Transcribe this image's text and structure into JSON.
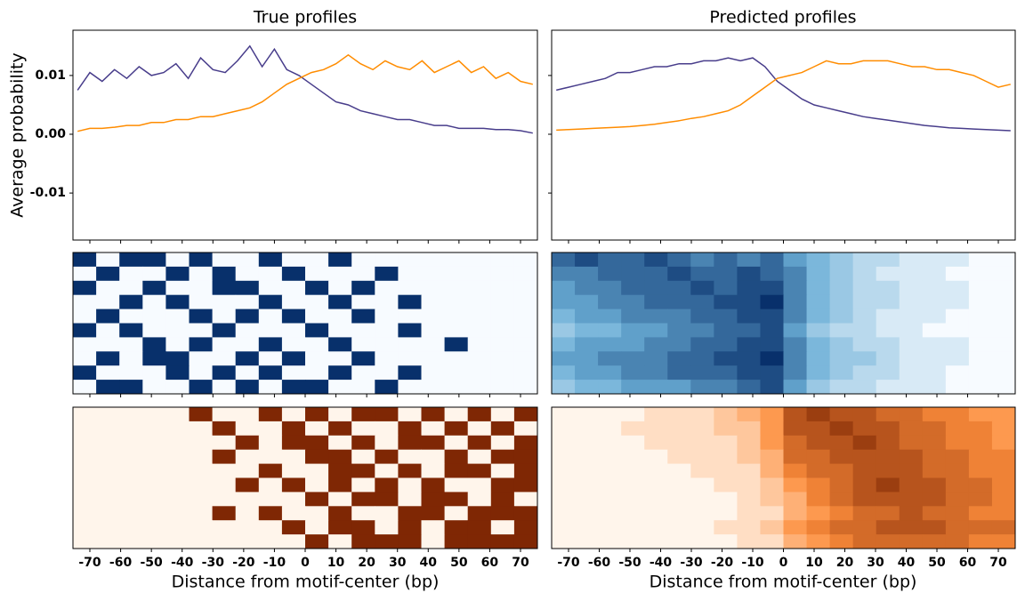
{
  "chart_data": [
    {
      "type": "line",
      "title": "True profiles",
      "ylabel": "Average probability",
      "x": [
        -74,
        -70,
        -66,
        -62,
        -58,
        -54,
        -50,
        -46,
        -42,
        -38,
        -34,
        -30,
        -26,
        -22,
        -18,
        -14,
        -10,
        -6,
        -2,
        2,
        6,
        10,
        14,
        18,
        22,
        26,
        30,
        34,
        38,
        42,
        46,
        50,
        54,
        58,
        62,
        66,
        70,
        74
      ],
      "xlim": [
        -75.5,
        75.5
      ],
      "xticks": [
        -70,
        -60,
        -50,
        -40,
        -30,
        -20,
        -10,
        0,
        10,
        20,
        30,
        40,
        50,
        60,
        70
      ],
      "ylim": [
        -0.018,
        0.0177
      ],
      "yticks": [
        0.01,
        {
          "value": 0,
          "label": "0.00"
        },
        -0.01
      ],
      "series": [
        {
          "color": "#483d8b",
          "values": [
            0.0075,
            0.0105,
            0.009,
            0.011,
            0.0095,
            0.0115,
            0.01,
            0.0105,
            0.012,
            0.0095,
            0.013,
            0.011,
            0.0105,
            0.0125,
            0.015,
            0.0115,
            0.0145,
            0.011,
            0.01,
            0.0085,
            0.007,
            0.0055,
            0.005,
            0.004,
            0.0035,
            0.003,
            0.0025,
            0.0025,
            0.002,
            0.0015,
            0.0015,
            0.001,
            0.001,
            0.001,
            0.0008,
            0.0008,
            0.0006,
            0.0002
          ]
        },
        {
          "color": "#ff8c00",
          "values": [
            0.0005,
            0.001,
            0.001,
            0.0012,
            0.0015,
            0.0015,
            0.002,
            0.002,
            0.0025,
            0.0025,
            0.003,
            0.003,
            0.0035,
            0.004,
            0.0045,
            0.0055,
            0.007,
            0.0085,
            0.0095,
            0.0105,
            0.011,
            0.012,
            0.0135,
            0.012,
            0.011,
            0.0125,
            0.0115,
            0.011,
            0.0125,
            0.0105,
            0.0115,
            0.0125,
            0.0105,
            0.0115,
            0.0095,
            0.0105,
            0.009,
            0.0085
          ]
        }
      ]
    },
    {
      "type": "line",
      "title": "Predicted profiles",
      "x": [
        -74,
        -70,
        -66,
        -62,
        -58,
        -54,
        -50,
        -46,
        -42,
        -38,
        -34,
        -30,
        -26,
        -22,
        -18,
        -14,
        -10,
        -6,
        -2,
        2,
        6,
        10,
        14,
        18,
        22,
        26,
        30,
        34,
        38,
        42,
        46,
        50,
        54,
        58,
        62,
        66,
        70,
        74
      ],
      "xlim": [
        -75.5,
        75.5
      ],
      "xticks": [
        -70,
        -60,
        -50,
        -40,
        -30,
        -20,
        -10,
        0,
        10,
        20,
        30,
        40,
        50,
        60,
        70
      ],
      "ylim": [
        -0.018,
        0.0177
      ],
      "yticks": [
        0.01,
        {
          "value": 0,
          "label": "0.00"
        },
        -0.01
      ],
      "series": [
        {
          "color": "#483d8b",
          "values": [
            0.0075,
            0.008,
            0.0085,
            0.009,
            0.0095,
            0.0105,
            0.0105,
            0.011,
            0.0115,
            0.0115,
            0.012,
            0.012,
            0.0125,
            0.0125,
            0.013,
            0.0125,
            0.013,
            0.0115,
            0.009,
            0.0075,
            0.006,
            0.005,
            0.0045,
            0.004,
            0.0035,
            0.003,
            0.0027,
            0.0024,
            0.0021,
            0.0018,
            0.0015,
            0.0013,
            0.0011,
            0.001,
            0.0009,
            0.0008,
            0.0007,
            0.0006
          ]
        },
        {
          "color": "#ff8c00",
          "values": [
            0.0007,
            0.0008,
            0.0009,
            0.001,
            0.0011,
            0.0012,
            0.0013,
            0.0015,
            0.0017,
            0.002,
            0.0023,
            0.0027,
            0.003,
            0.0035,
            0.004,
            0.005,
            0.0065,
            0.008,
            0.0095,
            0.01,
            0.0105,
            0.0115,
            0.0125,
            0.012,
            0.012,
            0.0125,
            0.0125,
            0.0125,
            0.012,
            0.0115,
            0.0115,
            0.011,
            0.011,
            0.0105,
            0.01,
            0.009,
            0.008,
            0.0085
          ]
        }
      ]
    },
    {
      "type": "heatmap",
      "colormap": [
        "#f7fbff",
        "#6baed6",
        "#08306b"
      ],
      "zlim": [
        0,
        9
      ],
      "xlim": [
        -75.5,
        75.5
      ],
      "xticks": [
        -70,
        -60,
        -50,
        -40,
        -30,
        -20,
        -10,
        0,
        10,
        20,
        30,
        40,
        50,
        60,
        70
      ],
      "values": [
        [
          9,
          0,
          9,
          9,
          0,
          9,
          0,
          0,
          9,
          0,
          0,
          9,
          0,
          0,
          0,
          0,
          0,
          0,
          0,
          0
        ],
        [
          0,
          9,
          0,
          0,
          9,
          0,
          9,
          0,
          0,
          9,
          0,
          0,
          0,
          9,
          0,
          0,
          0,
          0,
          0,
          0
        ],
        [
          9,
          0,
          0,
          9,
          0,
          0,
          9,
          9,
          0,
          0,
          9,
          0,
          9,
          0,
          0,
          0,
          0,
          0,
          0,
          0
        ],
        [
          0,
          0,
          9,
          0,
          9,
          0,
          0,
          0,
          9,
          0,
          0,
          9,
          0,
          0,
          9,
          0,
          0,
          0,
          0,
          0
        ],
        [
          0,
          9,
          0,
          0,
          0,
          9,
          0,
          9,
          0,
          9,
          0,
          0,
          9,
          0,
          0,
          0,
          0,
          0,
          0,
          0
        ],
        [
          9,
          0,
          9,
          0,
          0,
          0,
          9,
          0,
          0,
          0,
          9,
          0,
          0,
          0,
          9,
          0,
          0,
          0,
          0,
          0
        ],
        [
          0,
          0,
          0,
          9,
          0,
          9,
          0,
          0,
          9,
          0,
          0,
          9,
          0,
          0,
          0,
          0,
          9,
          0,
          0,
          0
        ],
        [
          0,
          9,
          0,
          9,
          9,
          0,
          0,
          9,
          0,
          9,
          0,
          0,
          9,
          0,
          0,
          0,
          0,
          0,
          0,
          0
        ],
        [
          9,
          0,
          0,
          0,
          9,
          0,
          9,
          0,
          9,
          0,
          0,
          9,
          0,
          0,
          9,
          0,
          0,
          0,
          0,
          0
        ],
        [
          0,
          9,
          9,
          0,
          0,
          9,
          0,
          9,
          0,
          9,
          9,
          0,
          0,
          9,
          0,
          0,
          0,
          0,
          0,
          0
        ]
      ]
    },
    {
      "type": "heatmap",
      "colormap": [
        "#f7fbff",
        "#6baed6",
        "#08306b"
      ],
      "zlim": [
        0,
        9
      ],
      "xlim": [
        -75.5,
        75.5
      ],
      "xticks": [
        -70,
        -60,
        -50,
        -40,
        -30,
        -20,
        -10,
        0,
        10,
        20,
        30,
        40,
        50,
        60,
        70
      ],
      "values": [
        [
          7,
          8,
          7,
          7,
          8,
          7,
          6,
          7,
          6,
          7,
          5,
          4,
          3,
          2,
          2,
          1,
          1,
          1,
          0,
          0
        ],
        [
          6,
          6,
          7,
          7,
          7,
          8,
          7,
          7,
          8,
          7,
          6,
          4,
          3,
          2,
          1,
          1,
          1,
          0,
          0,
          0
        ],
        [
          5,
          6,
          6,
          7,
          7,
          7,
          8,
          7,
          8,
          8,
          6,
          4,
          3,
          2,
          2,
          1,
          1,
          1,
          0,
          0
        ],
        [
          5,
          5,
          6,
          6,
          7,
          7,
          7,
          8,
          8,
          9,
          6,
          4,
          3,
          2,
          2,
          1,
          1,
          1,
          0,
          0
        ],
        [
          4,
          5,
          5,
          6,
          6,
          6,
          7,
          7,
          8,
          8,
          6,
          4,
          3,
          2,
          1,
          1,
          1,
          0,
          0,
          0
        ],
        [
          3,
          4,
          4,
          5,
          5,
          6,
          6,
          7,
          7,
          8,
          5,
          3,
          2,
          2,
          1,
          1,
          0,
          0,
          0,
          0
        ],
        [
          4,
          5,
          5,
          5,
          6,
          6,
          7,
          7,
          8,
          8,
          6,
          4,
          3,
          2,
          2,
          1,
          1,
          1,
          0,
          0
        ],
        [
          5,
          5,
          6,
          6,
          6,
          7,
          7,
          8,
          8,
          9,
          6,
          4,
          3,
          3,
          2,
          1,
          1,
          1,
          0,
          0
        ],
        [
          4,
          5,
          5,
          6,
          6,
          7,
          7,
          7,
          8,
          8,
          6,
          4,
          3,
          2,
          2,
          1,
          1,
          0,
          0,
          0
        ],
        [
          3,
          4,
          4,
          5,
          5,
          5,
          6,
          6,
          7,
          8,
          5,
          3,
          2,
          2,
          1,
          1,
          1,
          0,
          0,
          0
        ]
      ]
    },
    {
      "type": "heatmap",
      "colormap": [
        "#fff5eb",
        "#fd8d3c",
        "#7f2704"
      ],
      "zlim": [
        0,
        9
      ],
      "xlim": [
        -75.5,
        75.5
      ],
      "xticks": [
        -70,
        -60,
        -50,
        -40,
        -30,
        -20,
        -10,
        0,
        10,
        20,
        30,
        40,
        50,
        60,
        70
      ],
      "xlabel": "Distance from motif-center (bp)",
      "values": [
        [
          0,
          0,
          0,
          0,
          0,
          9,
          0,
          0,
          9,
          0,
          9,
          0,
          9,
          9,
          0,
          9,
          0,
          9,
          0,
          9
        ],
        [
          0,
          0,
          0,
          0,
          0,
          0,
          9,
          0,
          0,
          9,
          0,
          9,
          0,
          0,
          9,
          0,
          9,
          0,
          9,
          0
        ],
        [
          0,
          0,
          0,
          0,
          0,
          0,
          0,
          9,
          0,
          9,
          9,
          0,
          9,
          0,
          9,
          9,
          0,
          9,
          0,
          9
        ],
        [
          0,
          0,
          0,
          0,
          0,
          0,
          9,
          0,
          0,
          0,
          9,
          9,
          0,
          9,
          0,
          0,
          9,
          0,
          9,
          9
        ],
        [
          0,
          0,
          0,
          0,
          0,
          0,
          0,
          0,
          9,
          0,
          0,
          9,
          9,
          0,
          9,
          0,
          9,
          9,
          0,
          9
        ],
        [
          0,
          0,
          0,
          0,
          0,
          0,
          0,
          9,
          0,
          9,
          0,
          9,
          0,
          9,
          0,
          9,
          0,
          0,
          9,
          9
        ],
        [
          0,
          0,
          0,
          0,
          0,
          0,
          0,
          0,
          0,
          0,
          9,
          0,
          9,
          9,
          0,
          9,
          9,
          0,
          9,
          0
        ],
        [
          0,
          0,
          0,
          0,
          0,
          0,
          9,
          0,
          9,
          0,
          0,
          9,
          0,
          0,
          9,
          9,
          0,
          9,
          9,
          9
        ],
        [
          0,
          0,
          0,
          0,
          0,
          0,
          0,
          0,
          0,
          9,
          0,
          9,
          9,
          0,
          9,
          0,
          9,
          9,
          0,
          9
        ],
        [
          0,
          0,
          0,
          0,
          0,
          0,
          0,
          0,
          0,
          0,
          9,
          0,
          9,
          9,
          9,
          0,
          9,
          9,
          9,
          9
        ]
      ]
    },
    {
      "type": "heatmap",
      "colormap": [
        "#fff5eb",
        "#fd8d3c",
        "#7f2704"
      ],
      "zlim": [
        0,
        9
      ],
      "xlim": [
        -75.5,
        75.5
      ],
      "xticks": [
        -70,
        -60,
        -50,
        -40,
        -30,
        -20,
        -10,
        0,
        10,
        20,
        30,
        40,
        50,
        60,
        70
      ],
      "xlabel": "Distance from motif-center (bp)",
      "values": [
        [
          0,
          0,
          0,
          0,
          1,
          1,
          1,
          2,
          3,
          4,
          7,
          8,
          7,
          7,
          6,
          6,
          5,
          5,
          4,
          4
        ],
        [
          0,
          0,
          0,
          1,
          1,
          1,
          1,
          2,
          2,
          4,
          7,
          7,
          8,
          7,
          7,
          6,
          6,
          5,
          5,
          4
        ],
        [
          0,
          0,
          0,
          0,
          1,
          1,
          1,
          1,
          2,
          4,
          6,
          7,
          7,
          8,
          7,
          6,
          6,
          5,
          5,
          4
        ],
        [
          0,
          0,
          0,
          0,
          0,
          1,
          1,
          1,
          2,
          3,
          6,
          6,
          7,
          7,
          7,
          7,
          6,
          6,
          5,
          5
        ],
        [
          0,
          0,
          0,
          0,
          0,
          0,
          1,
          1,
          1,
          3,
          5,
          6,
          6,
          7,
          7,
          7,
          6,
          6,
          5,
          5
        ],
        [
          0,
          0,
          0,
          0,
          0,
          0,
          0,
          1,
          1,
          2,
          4,
          5,
          6,
          7,
          8,
          7,
          7,
          6,
          6,
          5
        ],
        [
          0,
          0,
          0,
          0,
          0,
          0,
          0,
          0,
          1,
          2,
          3,
          5,
          6,
          7,
          7,
          7,
          7,
          6,
          6,
          5
        ],
        [
          0,
          0,
          0,
          0,
          0,
          0,
          0,
          0,
          1,
          1,
          3,
          4,
          5,
          6,
          6,
          7,
          6,
          6,
          5,
          5
        ],
        [
          0,
          0,
          0,
          0,
          0,
          0,
          0,
          1,
          1,
          2,
          4,
          5,
          6,
          6,
          7,
          7,
          7,
          6,
          6,
          6
        ],
        [
          0,
          0,
          0,
          0,
          0,
          0,
          0,
          0,
          1,
          1,
          3,
          4,
          5,
          6,
          6,
          6,
          6,
          6,
          5,
          5
        ]
      ]
    }
  ]
}
